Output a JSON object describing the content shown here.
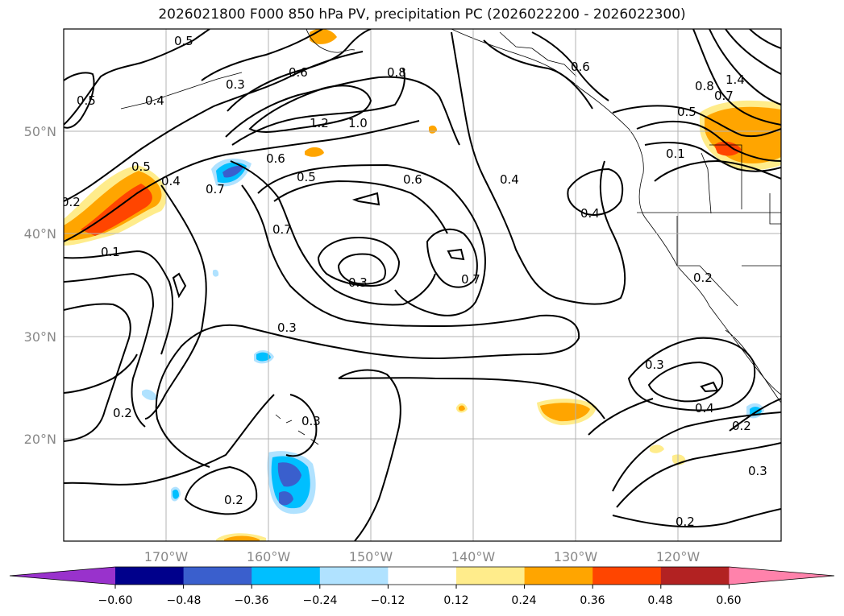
{
  "title": "2026021800 F000 850 hPa PV, precipitation PC (2026022200 - 2026022300)",
  "lat_labels": [
    "50°N",
    "40°N",
    "30°N",
    "20°N"
  ],
  "lon_labels": [
    "170°W",
    "160°W",
    "150°W",
    "140°W",
    "130°W",
    "120°W"
  ],
  "contour_labels": [
    "0.5",
    "0.3",
    "0.6",
    "0.8",
    "0.6",
    "0.8",
    "0.4",
    "0.5",
    "1.2",
    "1.0",
    "0.5",
    "0.1",
    "0.6",
    "0.4",
    "0.5",
    "0.5",
    "0.6",
    "0.2",
    "0.7",
    "0.4",
    "0.7",
    "0.3",
    "0.7",
    "0.1",
    "0.3",
    "0.3",
    "0.2",
    "0.2",
    "0.4",
    "0.3",
    "0.2",
    "0.2",
    "0.3",
    "0.4",
    "0.2",
    "1.4",
    "0.7"
  ],
  "colorbar": {
    "ticks": [
      "−0.60",
      "−0.48",
      "−0.36",
      "−0.24",
      "−0.12",
      "0.12",
      "0.24",
      "0.36",
      "0.48",
      "0.60"
    ],
    "colors": [
      "#9932cc",
      "#00008b",
      "#3a5fcd",
      "#00bfff",
      "#b0e2ff",
      "#ffffff",
      "#ffec8b",
      "#ffa500",
      "#ff4500",
      "#b22222",
      "#ff82ab"
    ]
  }
}
